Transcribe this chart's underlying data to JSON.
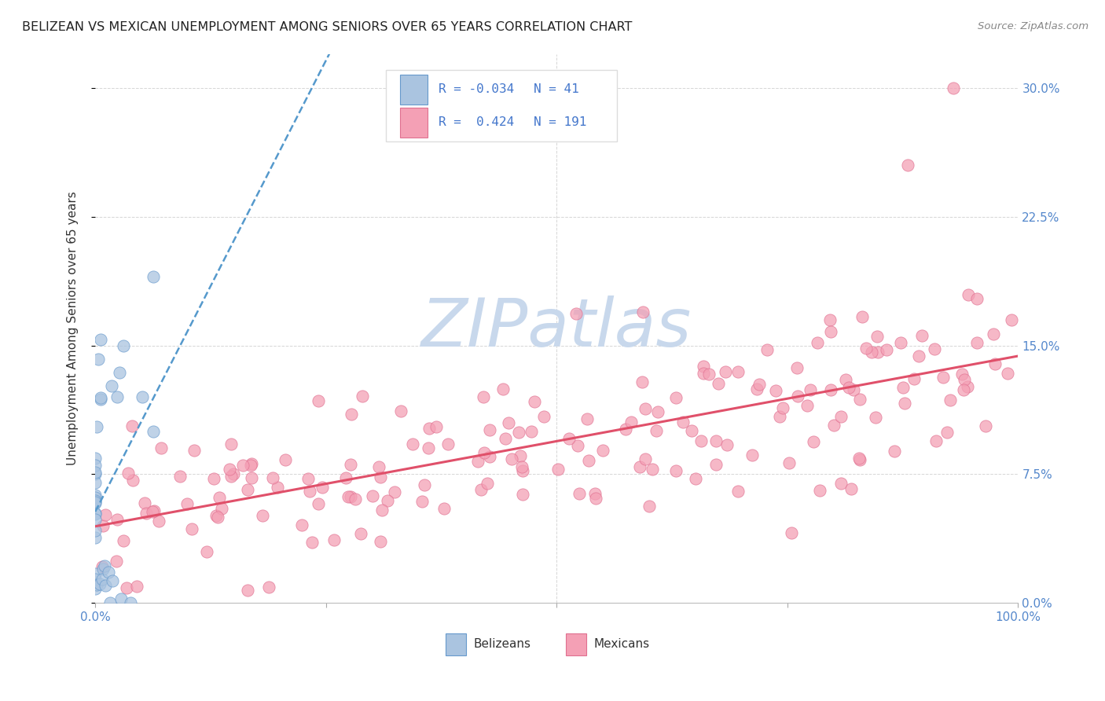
{
  "title": "BELIZEAN VS MEXICAN UNEMPLOYMENT AMONG SENIORS OVER 65 YEARS CORRELATION CHART",
  "source": "Source: ZipAtlas.com",
  "ylabel": "Unemployment Among Seniors over 65 years",
  "xlim": [
    0,
    1.0
  ],
  "ylim": [
    0,
    0.32
  ],
  "yticks": [
    0.0,
    0.075,
    0.15,
    0.225,
    0.3
  ],
  "yticklabels": [
    "0.0%",
    "7.5%",
    "15.0%",
    "22.5%",
    "30.0%"
  ],
  "xtick_left_label": "0.0%",
  "xtick_right_label": "100.0%",
  "belizean_color": "#aac4e0",
  "mexican_color": "#f4a0b5",
  "belizean_edge": "#6699cc",
  "mexican_edge": "#e07090",
  "belizean_line_color": "#5599cc",
  "mexican_line_color": "#e0506a",
  "ytick_color": "#5588cc",
  "xtick_color": "#5588cc",
  "legend_R_belizean": "-0.034",
  "legend_N_belizean": "41",
  "legend_R_mexican": "0.424",
  "legend_N_mexican": "191",
  "watermark": "ZIPatlas",
  "watermark_color": "#c8d8ec",
  "grid_color": "#cccccc",
  "legend_box_color": "#dddddd",
  "title_color": "#222222",
  "source_color": "#888888",
  "label_color": "#333333"
}
